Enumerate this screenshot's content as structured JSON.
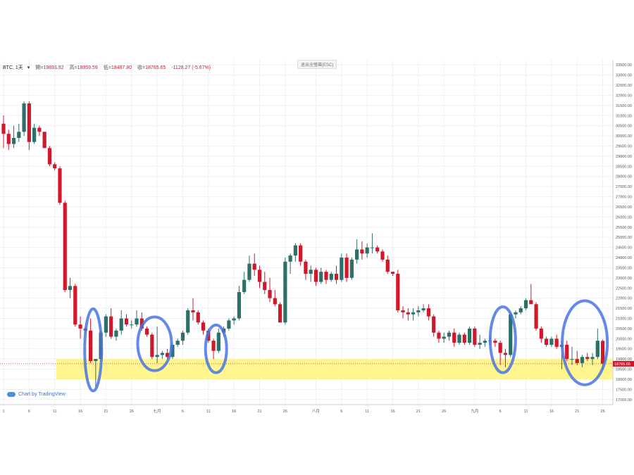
{
  "header": {
    "symbol": "BTC, 1天",
    "open_label": "開=",
    "open": "19893.92",
    "high_label": "高=",
    "high": "19959.59",
    "low_label": "低=",
    "low": "18487.80",
    "close_label": "收=",
    "close": "18765.65",
    "change": "-1128.27 (-5.67%)"
  },
  "exit_fullscreen": "退出全螢幕(ESC)",
  "branding": "Chart by TradingView",
  "price_label": "18765.65",
  "colors": {
    "up": "#2e6f68",
    "down": "#d0182b",
    "support_zone": "#fff36b",
    "highlight_ring": "#4a74e0"
  },
  "chart_data": {
    "type": "candlestick",
    "y_ticks": [
      17000,
      17500,
      18000,
      18500,
      19000,
      19500,
      20000,
      20500,
      21000,
      21500,
      22000,
      22500,
      23000,
      23500,
      24000,
      24500,
      25000,
      25500,
      26000,
      26500,
      27000,
      27500,
      28000,
      28500,
      29000,
      29500,
      30000,
      30500,
      31000,
      31500,
      32000,
      32500,
      33000,
      33500
    ],
    "ylim": [
      16750,
      33750
    ],
    "x_ticks": [
      "1",
      "6",
      "11",
      "16",
      "21",
      "26",
      "七月",
      "6",
      "11",
      "16",
      "21",
      "26",
      "八月",
      "6",
      "11",
      "16",
      "21",
      "26",
      "九月",
      "6",
      "11",
      "16",
      "21",
      "26"
    ],
    "x_tick_days": [
      0,
      5,
      10,
      15,
      20,
      25,
      30,
      35,
      40,
      45,
      50,
      55,
      61,
      66,
      71,
      76,
      81,
      86,
      92,
      97,
      102,
      107,
      112,
      117
    ],
    "support_zone": [
      18000,
      19000
    ],
    "candles": [
      {
        "o": 30600,
        "h": 31000,
        "l": 29400,
        "c": 30100
      },
      {
        "o": 30100,
        "h": 30300,
        "l": 29300,
        "c": 29600
      },
      {
        "o": 29600,
        "h": 30500,
        "l": 29400,
        "c": 29900
      },
      {
        "o": 29900,
        "h": 30600,
        "l": 29700,
        "c": 30200
      },
      {
        "o": 30200,
        "h": 31700,
        "l": 30000,
        "c": 31600
      },
      {
        "o": 31600,
        "h": 31700,
        "l": 29300,
        "c": 29700
      },
      {
        "o": 29700,
        "h": 30600,
        "l": 29600,
        "c": 30400
      },
      {
        "o": 30400,
        "h": 30500,
        "l": 30000,
        "c": 30200
      },
      {
        "o": 30200,
        "h": 30200,
        "l": 29400,
        "c": 29400
      },
      {
        "o": 29400,
        "h": 29500,
        "l": 28500,
        "c": 28600
      },
      {
        "o": 28600,
        "h": 28700,
        "l": 28300,
        "c": 28400
      },
      {
        "o": 28400,
        "h": 28500,
        "l": 26600,
        "c": 26700
      },
      {
        "o": 26700,
        "h": 26800,
        "l": 22300,
        "c": 22400
      },
      {
        "o": 22400,
        "h": 23000,
        "l": 22000,
        "c": 22600
      },
      {
        "o": 22600,
        "h": 22700,
        "l": 20600,
        "c": 20700
      },
      {
        "o": 20700,
        "h": 21100,
        "l": 20000,
        "c": 20500
      },
      {
        "o": 20500,
        "h": 20600,
        "l": 20300,
        "c": 20400
      },
      {
        "o": 20400,
        "h": 21000,
        "l": 18800,
        "c": 18900
      },
      {
        "o": 18900,
        "h": 19000,
        "l": 17600,
        "c": 19000
      },
      {
        "o": 19000,
        "h": 20400,
        "l": 18900,
        "c": 20300
      },
      {
        "o": 20300,
        "h": 21200,
        "l": 20100,
        "c": 21100
      },
      {
        "o": 21100,
        "h": 21500,
        "l": 20000,
        "c": 20100
      },
      {
        "o": 20100,
        "h": 20500,
        "l": 19900,
        "c": 20400
      },
      {
        "o": 20400,
        "h": 21400,
        "l": 20200,
        "c": 21000
      },
      {
        "o": 21000,
        "h": 21200,
        "l": 20600,
        "c": 20700
      },
      {
        "o": 20700,
        "h": 20900,
        "l": 20500,
        "c": 20700
      },
      {
        "o": 20700,
        "h": 21400,
        "l": 20600,
        "c": 21000
      },
      {
        "o": 21000,
        "h": 21300,
        "l": 20400,
        "c": 20500
      },
      {
        "o": 20500,
        "h": 20600,
        "l": 20100,
        "c": 20200
      },
      {
        "o": 20200,
        "h": 20300,
        "l": 19000,
        "c": 19100
      },
      {
        "o": 19100,
        "h": 20600,
        "l": 18800,
        "c": 19200
      },
      {
        "o": 19200,
        "h": 19400,
        "l": 19000,
        "c": 19300
      },
      {
        "o": 19300,
        "h": 19500,
        "l": 19000,
        "c": 19100
      },
      {
        "o": 19100,
        "h": 19800,
        "l": 19000,
        "c": 19700
      },
      {
        "o": 19700,
        "h": 20000,
        "l": 19600,
        "c": 19900
      },
      {
        "o": 19900,
        "h": 20400,
        "l": 19700,
        "c": 20300
      },
      {
        "o": 20300,
        "h": 21500,
        "l": 20200,
        "c": 21400
      },
      {
        "o": 21400,
        "h": 22000,
        "l": 20900,
        "c": 21300
      },
      {
        "o": 21300,
        "h": 21400,
        "l": 20700,
        "c": 20800
      },
      {
        "o": 20800,
        "h": 20900,
        "l": 20200,
        "c": 20400
      },
      {
        "o": 20400,
        "h": 20500,
        "l": 19800,
        "c": 19900
      },
      {
        "o": 19900,
        "h": 20000,
        "l": 19000,
        "c": 19400
      },
      {
        "o": 19400,
        "h": 20500,
        "l": 19300,
        "c": 20300
      },
      {
        "o": 20300,
        "h": 20600,
        "l": 20100,
        "c": 20500
      },
      {
        "o": 20500,
        "h": 21000,
        "l": 20400,
        "c": 20900
      },
      {
        "o": 20900,
        "h": 21100,
        "l": 20700,
        "c": 21000
      },
      {
        "o": 21000,
        "h": 22600,
        "l": 20900,
        "c": 22300
      },
      {
        "o": 22300,
        "h": 23300,
        "l": 22200,
        "c": 22900
      },
      {
        "o": 22900,
        "h": 24100,
        "l": 22800,
        "c": 23700
      },
      {
        "o": 23700,
        "h": 24200,
        "l": 23100,
        "c": 23400
      },
      {
        "o": 23400,
        "h": 23600,
        "l": 22500,
        "c": 22800
      },
      {
        "o": 22800,
        "h": 23300,
        "l": 22200,
        "c": 22400
      },
      {
        "o": 22400,
        "h": 23000,
        "l": 21800,
        "c": 22000
      },
      {
        "o": 22000,
        "h": 22400,
        "l": 21600,
        "c": 21700
      },
      {
        "o": 21700,
        "h": 21800,
        "l": 20800,
        "c": 20800
      },
      {
        "o": 20800,
        "h": 24000,
        "l": 20700,
        "c": 23800
      },
      {
        "o": 23800,
        "h": 24200,
        "l": 23200,
        "c": 24100
      },
      {
        "o": 24100,
        "h": 24700,
        "l": 23800,
        "c": 24600
      },
      {
        "o": 24600,
        "h": 24700,
        "l": 23600,
        "c": 23800
      },
      {
        "o": 23800,
        "h": 23900,
        "l": 22900,
        "c": 23200
      },
      {
        "o": 23200,
        "h": 23600,
        "l": 22800,
        "c": 23400
      },
      {
        "o": 23400,
        "h": 23500,
        "l": 22600,
        "c": 22800
      },
      {
        "o": 22800,
        "h": 23500,
        "l": 22700,
        "c": 23300
      },
      {
        "o": 23300,
        "h": 23400,
        "l": 22700,
        "c": 22900
      },
      {
        "o": 22900,
        "h": 23300,
        "l": 22800,
        "c": 23200
      },
      {
        "o": 23200,
        "h": 23600,
        "l": 22700,
        "c": 22900
      },
      {
        "o": 22900,
        "h": 24200,
        "l": 22800,
        "c": 24000
      },
      {
        "o": 24000,
        "h": 24200,
        "l": 22800,
        "c": 23000
      },
      {
        "o": 23000,
        "h": 24000,
        "l": 22900,
        "c": 23900
      },
      {
        "o": 23900,
        "h": 24900,
        "l": 23700,
        "c": 24400
      },
      {
        "o": 24400,
        "h": 24800,
        "l": 23900,
        "c": 24200
      },
      {
        "o": 24200,
        "h": 24700,
        "l": 24000,
        "c": 24500
      },
      {
        "o": 24500,
        "h": 25200,
        "l": 24200,
        "c": 24500
      },
      {
        "o": 24500,
        "h": 24600,
        "l": 24200,
        "c": 24300
      },
      {
        "o": 24300,
        "h": 24400,
        "l": 23800,
        "c": 23900
      },
      {
        "o": 23900,
        "h": 24100,
        "l": 23200,
        "c": 23300
      },
      {
        "o": 23300,
        "h": 23300,
        "l": 23100,
        "c": 23200
      },
      {
        "o": 23200,
        "h": 23400,
        "l": 21300,
        "c": 21400
      },
      {
        "o": 21400,
        "h": 21600,
        "l": 21000,
        "c": 21300
      },
      {
        "o": 21300,
        "h": 21500,
        "l": 20900,
        "c": 21200
      },
      {
        "o": 21200,
        "h": 21500,
        "l": 20900,
        "c": 21300
      },
      {
        "o": 21300,
        "h": 21600,
        "l": 21100,
        "c": 21400
      },
      {
        "o": 21400,
        "h": 21700,
        "l": 21300,
        "c": 21500
      },
      {
        "o": 21500,
        "h": 21700,
        "l": 20900,
        "c": 21100
      },
      {
        "o": 21100,
        "h": 21200,
        "l": 20100,
        "c": 20300
      },
      {
        "o": 20300,
        "h": 20400,
        "l": 19800,
        "c": 20000
      },
      {
        "o": 20000,
        "h": 20300,
        "l": 19800,
        "c": 20100
      },
      {
        "o": 20100,
        "h": 20400,
        "l": 19900,
        "c": 20300
      },
      {
        "o": 20300,
        "h": 20500,
        "l": 19600,
        "c": 19800
      },
      {
        "o": 19800,
        "h": 20300,
        "l": 19700,
        "c": 20200
      },
      {
        "o": 20200,
        "h": 20300,
        "l": 19700,
        "c": 19800
      },
      {
        "o": 19800,
        "h": 20600,
        "l": 19700,
        "c": 20500
      },
      {
        "o": 20500,
        "h": 20600,
        "l": 19600,
        "c": 19700
      },
      {
        "o": 19700,
        "h": 20200,
        "l": 19500,
        "c": 19800
      },
      {
        "o": 19800,
        "h": 20000,
        "l": 19600,
        "c": 19900
      },
      {
        "o": 19900,
        "h": 20100,
        "l": 19700,
        "c": 19900
      },
      {
        "o": 19900,
        "h": 20000,
        "l": 19600,
        "c": 19800
      },
      {
        "o": 19800,
        "h": 19900,
        "l": 18700,
        "c": 19300
      },
      {
        "o": 19300,
        "h": 19500,
        "l": 18600,
        "c": 19200
      },
      {
        "o": 19200,
        "h": 21300,
        "l": 19100,
        "c": 21200
      },
      {
        "o": 21200,
        "h": 21400,
        "l": 21000,
        "c": 21300
      },
      {
        "o": 21300,
        "h": 21600,
        "l": 21200,
        "c": 21500
      },
      {
        "o": 21500,
        "h": 22000,
        "l": 21400,
        "c": 21900
      },
      {
        "o": 21900,
        "h": 22700,
        "l": 21800,
        "c": 21700
      },
      {
        "o": 21700,
        "h": 21800,
        "l": 20400,
        "c": 20500
      },
      {
        "o": 20500,
        "h": 20600,
        "l": 19800,
        "c": 20000
      },
      {
        "o": 20000,
        "h": 20100,
        "l": 19600,
        "c": 19700
      },
      {
        "o": 19700,
        "h": 20100,
        "l": 19600,
        "c": 20000
      },
      {
        "o": 20000,
        "h": 20200,
        "l": 19500,
        "c": 19600
      },
      {
        "o": 19600,
        "h": 19900,
        "l": 18500,
        "c": 19700
      },
      {
        "o": 19700,
        "h": 19900,
        "l": 18900,
        "c": 19000
      },
      {
        "o": 19000,
        "h": 19600,
        "l": 18700,
        "c": 19000
      },
      {
        "o": 19000,
        "h": 19400,
        "l": 18700,
        "c": 18800
      },
      {
        "o": 18800,
        "h": 19200,
        "l": 18600,
        "c": 19100
      },
      {
        "o": 19100,
        "h": 19300,
        "l": 18900,
        "c": 19000
      },
      {
        "o": 19000,
        "h": 19300,
        "l": 18700,
        "c": 19100
      },
      {
        "o": 19100,
        "h": 20500,
        "l": 19000,
        "c": 19900
      },
      {
        "o": 19893.92,
        "h": 19959.59,
        "l": 18487.8,
        "c": 18765.65
      }
    ]
  }
}
